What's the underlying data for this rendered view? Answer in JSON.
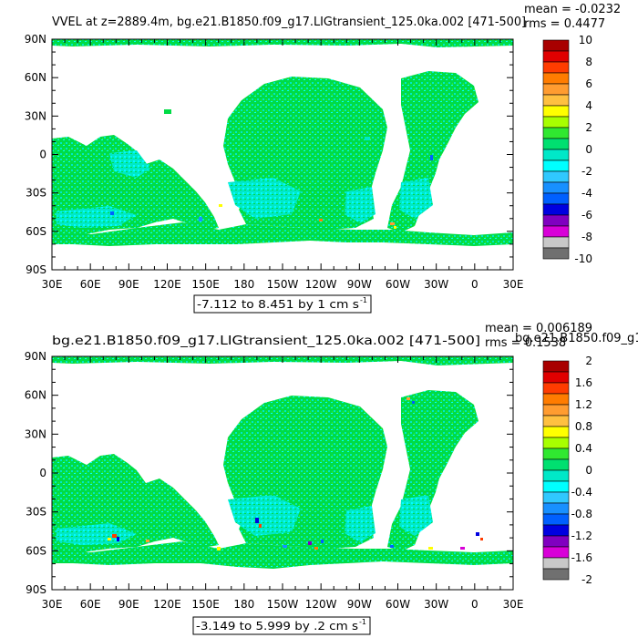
{
  "chart_data": [
    {
      "type": "heatmap",
      "title": "VVEL at z=2889.4m, bg.e21.B1850.f09_g17.LIGtransient_125.0ka.002 [471-500]",
      "stats": {
        "mean": "mean = -0.0232",
        "rms": "rms = 0.4477"
      },
      "ytick_labels": [
        "90N",
        "60N",
        "30N",
        "0",
        "30S",
        "60S",
        "90S"
      ],
      "xtick_labels": [
        "30E",
        "60E",
        "90E",
        "120E",
        "150E",
        "180",
        "150W",
        "120W",
        "90W",
        "60W",
        "30W",
        "0",
        "30E"
      ],
      "xlim": [
        30,
        390
      ],
      "ylim": [
        -90,
        90
      ],
      "range_label": "-7.112 to 8.451 by 1 cm s",
      "range_sup": "-1",
      "colorbar": {
        "labels": [
          "10",
          "8",
          "6",
          "4",
          "2",
          "0",
          "-2",
          "-4",
          "-6",
          "-8",
          "-10"
        ],
        "colors": [
          "#A80000",
          "#E00000",
          "#FF3C00",
          "#FF7C00",
          "#FF9C30",
          "#FFC040",
          "#FFFF00",
          "#A8FF00",
          "#30E830",
          "#00E070",
          "#00E8C8",
          "#00FFFF",
          "#30C8FF",
          "#1890FF",
          "#0060FF",
          "#0000E0",
          "#8000C0",
          "#D800D8",
          "#C8C8C8",
          "#707070"
        ]
      }
    },
    {
      "type": "heatmap",
      "title": "bg.e21.B1850.f09_g17.LIGtransient_125.0ka.002 [471-500]",
      "stats": {
        "mean": "mean = 0.006189",
        "rms": "rms = 0.1538",
        "overlap": "bg.e21.B1850.f09_g1"
      },
      "ytick_labels": [
        "90N",
        "60N",
        "30N",
        "0",
        "30S",
        "60S",
        "90S"
      ],
      "xtick_labels": [
        "30E",
        "60E",
        "90E",
        "120E",
        "150E",
        "180",
        "150W",
        "120W",
        "90W",
        "60W",
        "30W",
        "0",
        "30E"
      ],
      "xlim": [
        30,
        390
      ],
      "ylim": [
        -90,
        90
      ],
      "range_label": "-3.149 to 5.999 by .2 cm s",
      "range_sup": "-1",
      "colorbar": {
        "labels": [
          "2",
          "1.6",
          "1.2",
          "0.8",
          "0.4",
          "0",
          "-0.4",
          "-0.8",
          "-1.2",
          "-1.6",
          "-2"
        ],
        "colors": [
          "#A80000",
          "#E00000",
          "#FF3C00",
          "#FF7C00",
          "#FF9C30",
          "#FFC040",
          "#FFFF00",
          "#A8FF00",
          "#30E830",
          "#00E070",
          "#00E8C8",
          "#00FFFF",
          "#30C8FF",
          "#1890FF",
          "#0060FF",
          "#0000E0",
          "#8000C0",
          "#D800D8",
          "#C8C8C8",
          "#707070"
        ]
      }
    }
  ]
}
